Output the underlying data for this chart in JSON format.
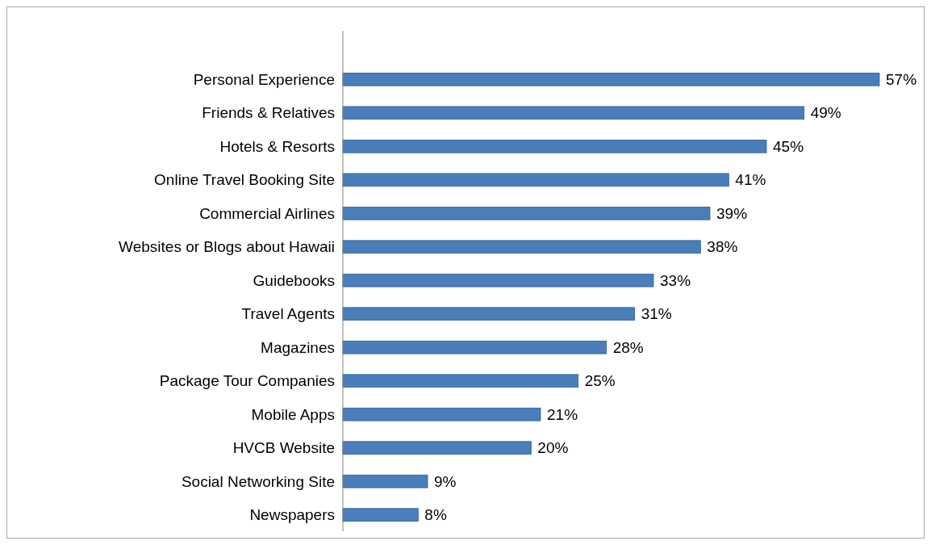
{
  "chart_data": {
    "type": "bar",
    "orientation": "horizontal",
    "categories": [
      "Personal Experience",
      "Friends & Relatives",
      "Hotels & Resorts",
      "Online Travel Booking Site",
      "Commercial Airlines",
      "Websites or Blogs about Hawaii",
      "Guidebooks",
      "Travel Agents",
      "Magazines",
      "Package Tour Companies",
      "Mobile Apps",
      "HVCB Website",
      "Social Networking Site",
      "Newspapers"
    ],
    "values": [
      57,
      49,
      45,
      41,
      39,
      38,
      33,
      31,
      28,
      25,
      21,
      20,
      9,
      8
    ],
    "value_labels": [
      "57%",
      "49%",
      "45%",
      "41%",
      "39%",
      "38%",
      "33%",
      "31%",
      "28%",
      "25%",
      "21%",
      "20%",
      "9%",
      "8%"
    ],
    "color": "#4a7ebb",
    "relative": false
  }
}
